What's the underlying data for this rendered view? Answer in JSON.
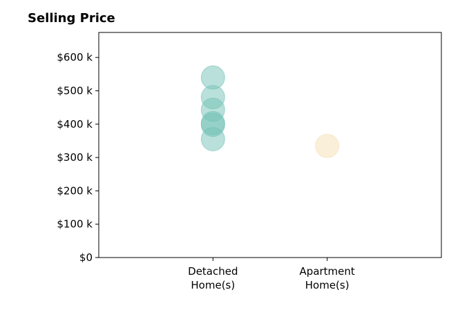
{
  "chart_data": {
    "type": "scatter",
    "title": "Selling Price",
    "xlabel": "",
    "ylabel": "",
    "categories": [
      [
        "Detached",
        "Home(s)"
      ],
      [
        "Apartment",
        "Home(s)"
      ]
    ],
    "series": [
      {
        "category_index": 0,
        "color": "#74c2b5",
        "values": [
          540,
          481,
          443,
          403,
          398,
          355
        ]
      },
      {
        "category_index": 1,
        "color": "#f5dfb3",
        "values": [
          335
        ]
      }
    ],
    "yticks": [
      0,
      100,
      200,
      300,
      400,
      500,
      600
    ],
    "ytick_labels": [
      "$0",
      "$100 k",
      "$200 k",
      "$300 k",
      "$400 k",
      "$500 k",
      "$600 k"
    ],
    "ylim": [
      0,
      675
    ],
    "xlim": [
      -1,
      2
    ],
    "grid": false,
    "legend": "none"
  }
}
